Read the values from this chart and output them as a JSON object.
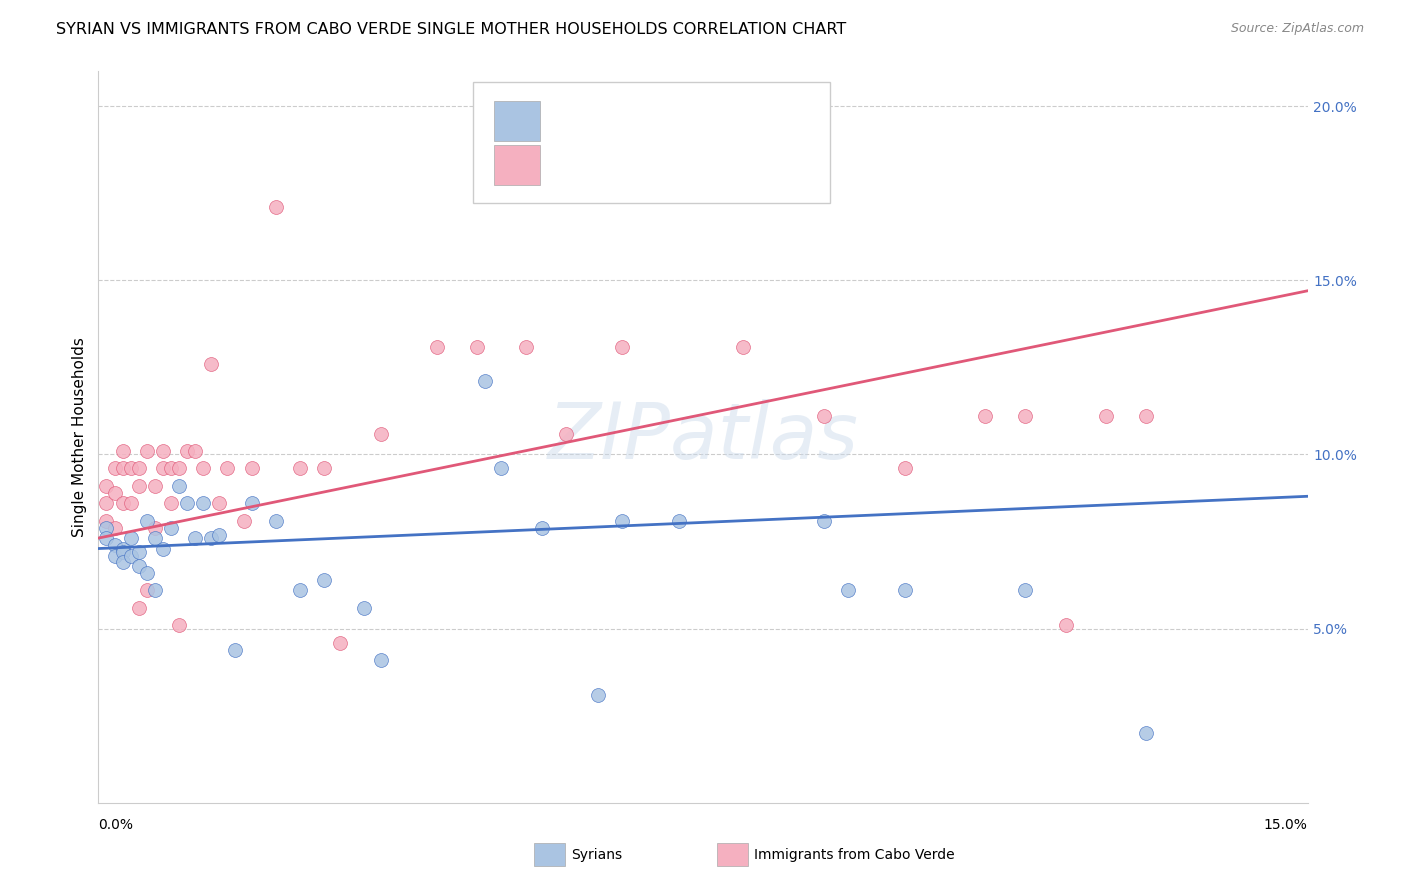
{
  "title": "SYRIAN VS IMMIGRANTS FROM CABO VERDE SINGLE MOTHER HOUSEHOLDS CORRELATION CHART",
  "source": "Source: ZipAtlas.com",
  "ylabel": "Single Mother Households",
  "xlim": [
    0,
    0.15
  ],
  "ylim": [
    0,
    0.21
  ],
  "right_yticks": [
    0.05,
    0.1,
    0.15,
    0.2
  ],
  "right_yticklabels": [
    "5.0%",
    "10.0%",
    "15.0%",
    "20.0%"
  ],
  "syrians_color": "#aac4e2",
  "cabo_verde_color": "#f5b0c0",
  "syrian_line_color": "#4472C4",
  "cabo_line_color": "#E05878",
  "watermark": "ZIPatlas",
  "syrians_x": [
    0.001,
    0.001,
    0.002,
    0.002,
    0.003,
    0.003,
    0.003,
    0.004,
    0.004,
    0.005,
    0.005,
    0.006,
    0.006,
    0.007,
    0.007,
    0.008,
    0.009,
    0.01,
    0.011,
    0.012,
    0.013,
    0.014,
    0.015,
    0.017,
    0.019,
    0.022,
    0.025,
    0.028,
    0.033,
    0.035,
    0.048,
    0.05,
    0.055,
    0.062,
    0.065,
    0.072,
    0.09,
    0.093,
    0.1,
    0.115,
    0.13
  ],
  "syrians_y": [
    0.079,
    0.076,
    0.074,
    0.071,
    0.073,
    0.072,
    0.069,
    0.076,
    0.071,
    0.072,
    0.068,
    0.081,
    0.066,
    0.076,
    0.061,
    0.073,
    0.079,
    0.091,
    0.086,
    0.076,
    0.086,
    0.076,
    0.077,
    0.044,
    0.086,
    0.081,
    0.061,
    0.064,
    0.056,
    0.041,
    0.121,
    0.096,
    0.079,
    0.031,
    0.081,
    0.081,
    0.081,
    0.061,
    0.061,
    0.061,
    0.02
  ],
  "cabo_verde_x": [
    0.001,
    0.001,
    0.001,
    0.002,
    0.002,
    0.002,
    0.003,
    0.003,
    0.003,
    0.004,
    0.004,
    0.005,
    0.005,
    0.005,
    0.006,
    0.006,
    0.007,
    0.007,
    0.008,
    0.008,
    0.009,
    0.009,
    0.01,
    0.01,
    0.011,
    0.012,
    0.013,
    0.014,
    0.015,
    0.016,
    0.018,
    0.019,
    0.022,
    0.025,
    0.028,
    0.03,
    0.035,
    0.042,
    0.047,
    0.053,
    0.058,
    0.065,
    0.08,
    0.09,
    0.1,
    0.11,
    0.115,
    0.12,
    0.125,
    0.13
  ],
  "cabo_verde_y": [
    0.091,
    0.086,
    0.081,
    0.096,
    0.089,
    0.079,
    0.101,
    0.096,
    0.086,
    0.096,
    0.086,
    0.096,
    0.091,
    0.056,
    0.101,
    0.061,
    0.091,
    0.079,
    0.096,
    0.101,
    0.096,
    0.086,
    0.096,
    0.051,
    0.101,
    0.101,
    0.096,
    0.126,
    0.086,
    0.096,
    0.081,
    0.096,
    0.171,
    0.096,
    0.096,
    0.046,
    0.106,
    0.131,
    0.131,
    0.131,
    0.106,
    0.131,
    0.131,
    0.111,
    0.096,
    0.111,
    0.111,
    0.051,
    0.111,
    0.111
  ],
  "syrian_trend_x": [
    0.0,
    0.15
  ],
  "syrian_trend_y": [
    0.073,
    0.088
  ],
  "cabo_trend_x": [
    0.0,
    0.15
  ],
  "cabo_trend_y": [
    0.076,
    0.147
  ]
}
